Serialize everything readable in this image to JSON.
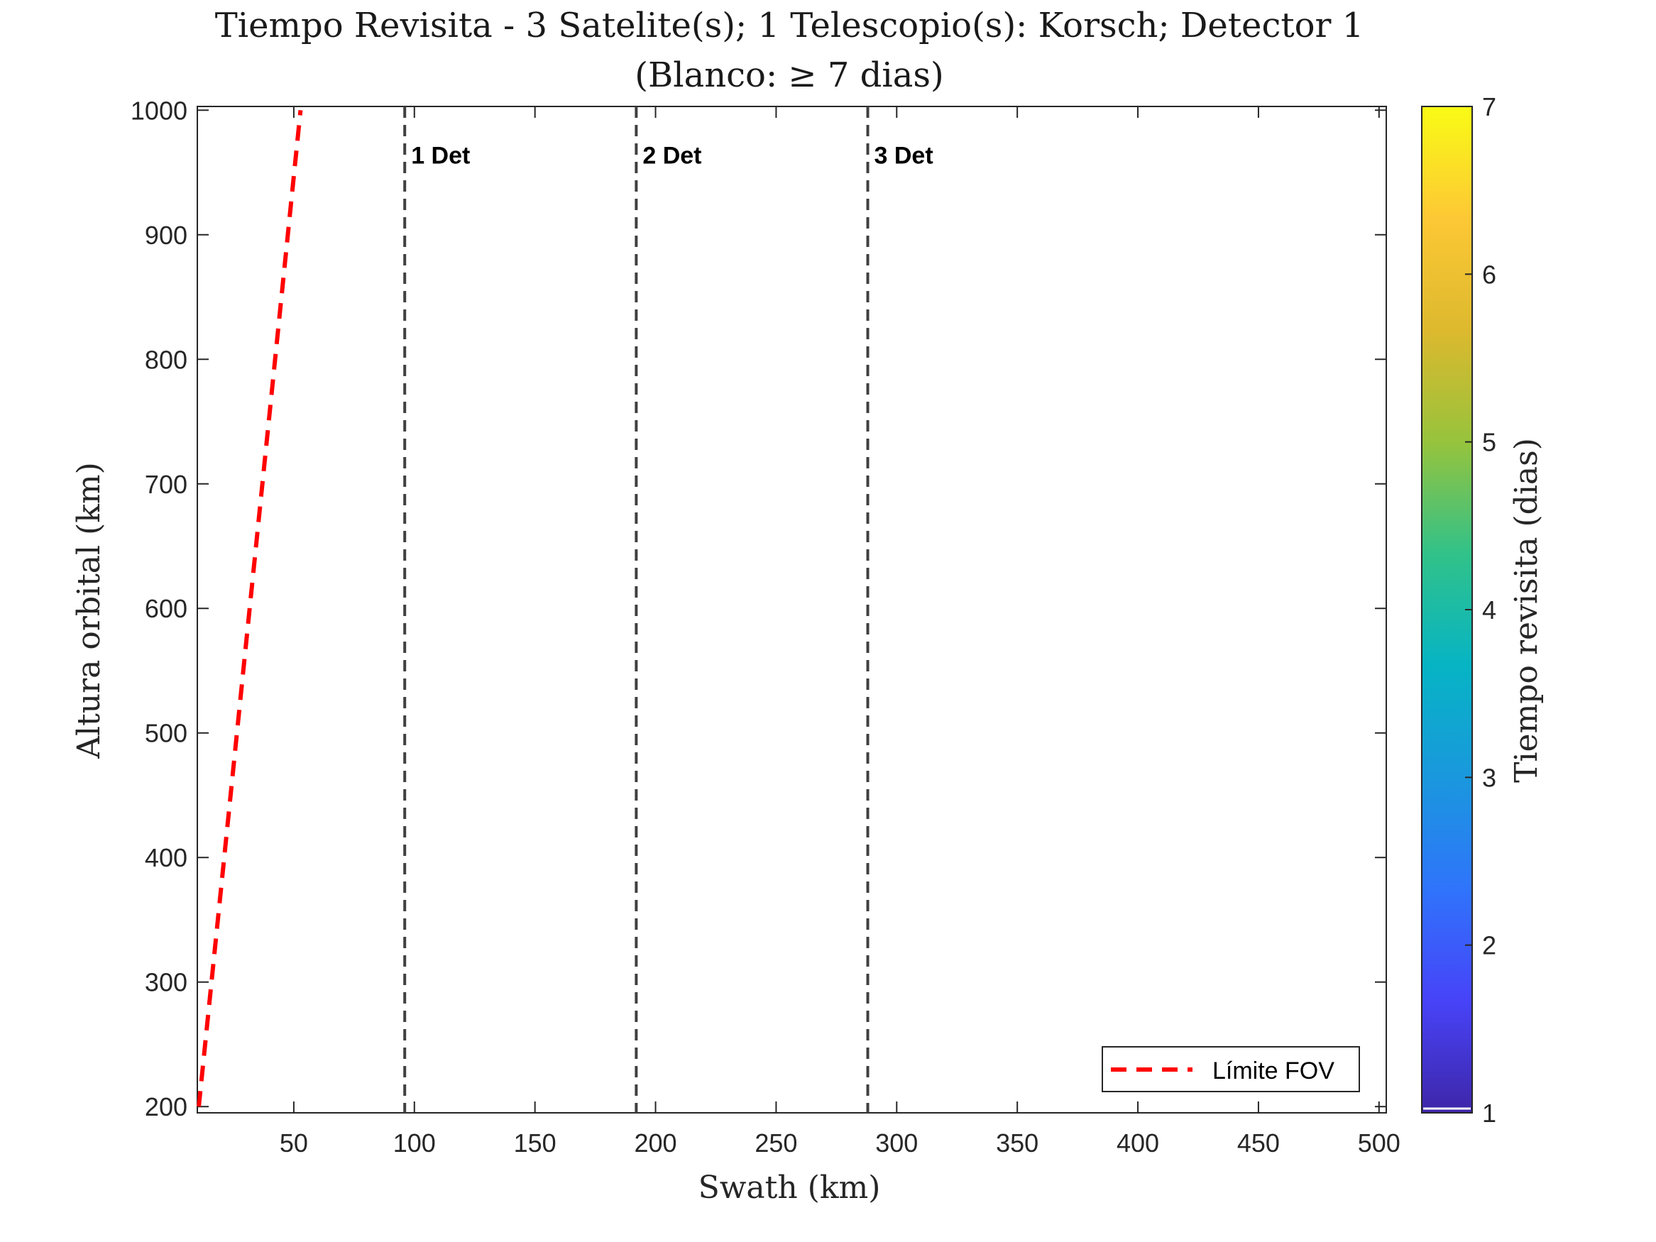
{
  "chart_data": {
    "type": "line",
    "title_line1": "Tiempo Revisita - 3 Satelite(s); 1 Telescopio(s): Korsch; Detector 1",
    "title_line2": "(Blanco: ≥ 7 dias)",
    "xlabel": "Swath (km)",
    "ylabel": "Altura orbital (km)",
    "xlim": [
      10,
      503
    ],
    "ylim": [
      195,
      1003
    ],
    "x_ticks": [
      50,
      100,
      150,
      200,
      250,
      300,
      350,
      400,
      450,
      500
    ],
    "y_ticks": [
      200,
      300,
      400,
      500,
      600,
      700,
      800,
      900,
      1000
    ],
    "grid": false,
    "series": [
      {
        "name": "Límite FOV",
        "color": "#ff0000",
        "style": "dashed",
        "x": [
          10.6,
          52.8
        ],
        "y": [
          200,
          1000
        ]
      }
    ],
    "vertical_lines": [
      {
        "x": 96,
        "label": "1 Det",
        "color": "#404040"
      },
      {
        "x": 192,
        "label": "2 Det",
        "color": "#404040"
      },
      {
        "x": 288,
        "label": "3 Det",
        "color": "#404040"
      }
    ],
    "vline_label_y": 960,
    "legend": {
      "position": "bottom-right",
      "entries": [
        "Límite FOV"
      ]
    },
    "colorbar": {
      "label": "Tiempo revisita (dias)",
      "range": [
        1,
        7
      ],
      "ticks": [
        1,
        2,
        3,
        4,
        5,
        6,
        7
      ],
      "colormap": "parula",
      "colors": [
        "#3e26a8",
        "#4743f8",
        "#2f74fb",
        "#1a98dd",
        "#06b4c4",
        "#31c289",
        "#97c33c",
        "#ddb92e",
        "#fdc835",
        "#f9fb15"
      ]
    }
  }
}
